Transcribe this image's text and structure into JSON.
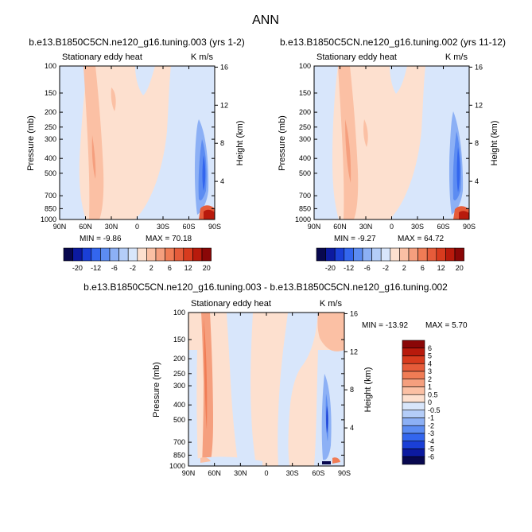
{
  "page_title": "ANN",
  "chart_data": [
    {
      "type": "contour",
      "title": "b.e13.B1850C5CN.ne120_g16.tuning.003 (yrs 1-2)",
      "subtitle_left": "Stationary eddy heat",
      "subtitle_right": "K m/s",
      "ylabel": "Pressure (mb)",
      "ylabel_right": "Height (km)",
      "x_ticks": [
        "90N",
        "60N",
        "30N",
        "0",
        "30S",
        "60S",
        "90S"
      ],
      "y_ticks": [
        100,
        150,
        200,
        250,
        300,
        400,
        500,
        700,
        850,
        1000
      ],
      "height_ticks": [
        16,
        12,
        8,
        4
      ],
      "ylim": [
        100,
        1000
      ],
      "min": -9.86,
      "max": 70.18,
      "min_label": "MIN = -9.86",
      "max_label": "MAX = 70.18",
      "colorbar_levels": [
        -20,
        -12,
        -6,
        -2,
        2,
        6,
        12,
        20
      ],
      "colorbar_tick_labels": [
        "-20",
        "-12",
        "-6",
        "-2",
        "2",
        "6",
        "12",
        "20"
      ]
    },
    {
      "type": "contour",
      "title": "b.e13.B1850C5CN.ne120_g16.tuning.002 (yrs 11-12)",
      "subtitle_left": "Stationary eddy heat",
      "subtitle_right": "K m/s",
      "ylabel": "Pressure (mb)",
      "ylabel_right": "Height (km)",
      "x_ticks": [
        "90N",
        "60N",
        "30N",
        "0",
        "30S",
        "60S",
        "90S"
      ],
      "y_ticks": [
        100,
        150,
        200,
        250,
        300,
        400,
        500,
        700,
        850,
        1000
      ],
      "height_ticks": [
        16,
        12,
        8,
        4
      ],
      "ylim": [
        100,
        1000
      ],
      "min": -9.27,
      "max": 64.72,
      "min_label": "MIN = -9.27",
      "max_label": "MAX = 64.72",
      "colorbar_levels": [
        -20,
        -12,
        -6,
        -2,
        2,
        6,
        12,
        20
      ],
      "colorbar_tick_labels": [
        "-20",
        "-12",
        "-6",
        "-2",
        "2",
        "6",
        "12",
        "20"
      ]
    },
    {
      "type": "contour",
      "title": "b.e13.B1850C5CN.ne120_g16.tuning.003 - b.e13.B1850C5CN.ne120_g16.tuning.002",
      "subtitle_left": "Stationary eddy heat",
      "subtitle_right": "K m/s",
      "ylabel": "Pressure (mb)",
      "ylabel_right": "Height (km)",
      "x_ticks": [
        "90N",
        "60N",
        "30N",
        "0",
        "30S",
        "60S",
        "90S"
      ],
      "y_ticks": [
        100,
        150,
        200,
        250,
        300,
        400,
        500,
        700,
        850,
        1000
      ],
      "height_ticks": [
        16,
        12,
        8,
        4
      ],
      "ylim": [
        100,
        1000
      ],
      "min": -13.92,
      "max": 5.7,
      "min_label": "MIN = -13.92",
      "max_label": "MAX =   5.70",
      "colorbar_levels": [
        6,
        5,
        4,
        3,
        2,
        1,
        0.5,
        0,
        -0.5,
        -1,
        -2,
        -3,
        -4,
        -5,
        -6
      ],
      "colorbar_tick_labels": [
        "6",
        "5",
        "4",
        "3",
        "2",
        "1",
        "0.5",
        "0",
        "-0.5",
        "-1",
        "-2",
        "-3",
        "-4",
        "-5",
        "-6"
      ]
    }
  ],
  "colors": {
    "colorbar_16": [
      "#08084f",
      "#0c1aa0",
      "#1a3fd6",
      "#3366ee",
      "#5c8cf2",
      "#8cb0f5",
      "#b4cdf8",
      "#d8e6fb",
      "#fde0cf",
      "#fbc0a4",
      "#f59f7e",
      "#f07c55",
      "#e65c3a",
      "#d83b1e",
      "#b81a0c",
      "#8a0707"
    ],
    "colorbar_diff": [
      "#8a0707",
      "#b81a0c",
      "#d83b1e",
      "#e65c3a",
      "#f07c55",
      "#f59f7e",
      "#fbc0a4",
      "#fde0cf",
      "#d8e6fb",
      "#b4cdf8",
      "#8cb0f5",
      "#5c8cf2",
      "#3366ee",
      "#1a3fd6",
      "#0c1aa0",
      "#08084f"
    ]
  }
}
